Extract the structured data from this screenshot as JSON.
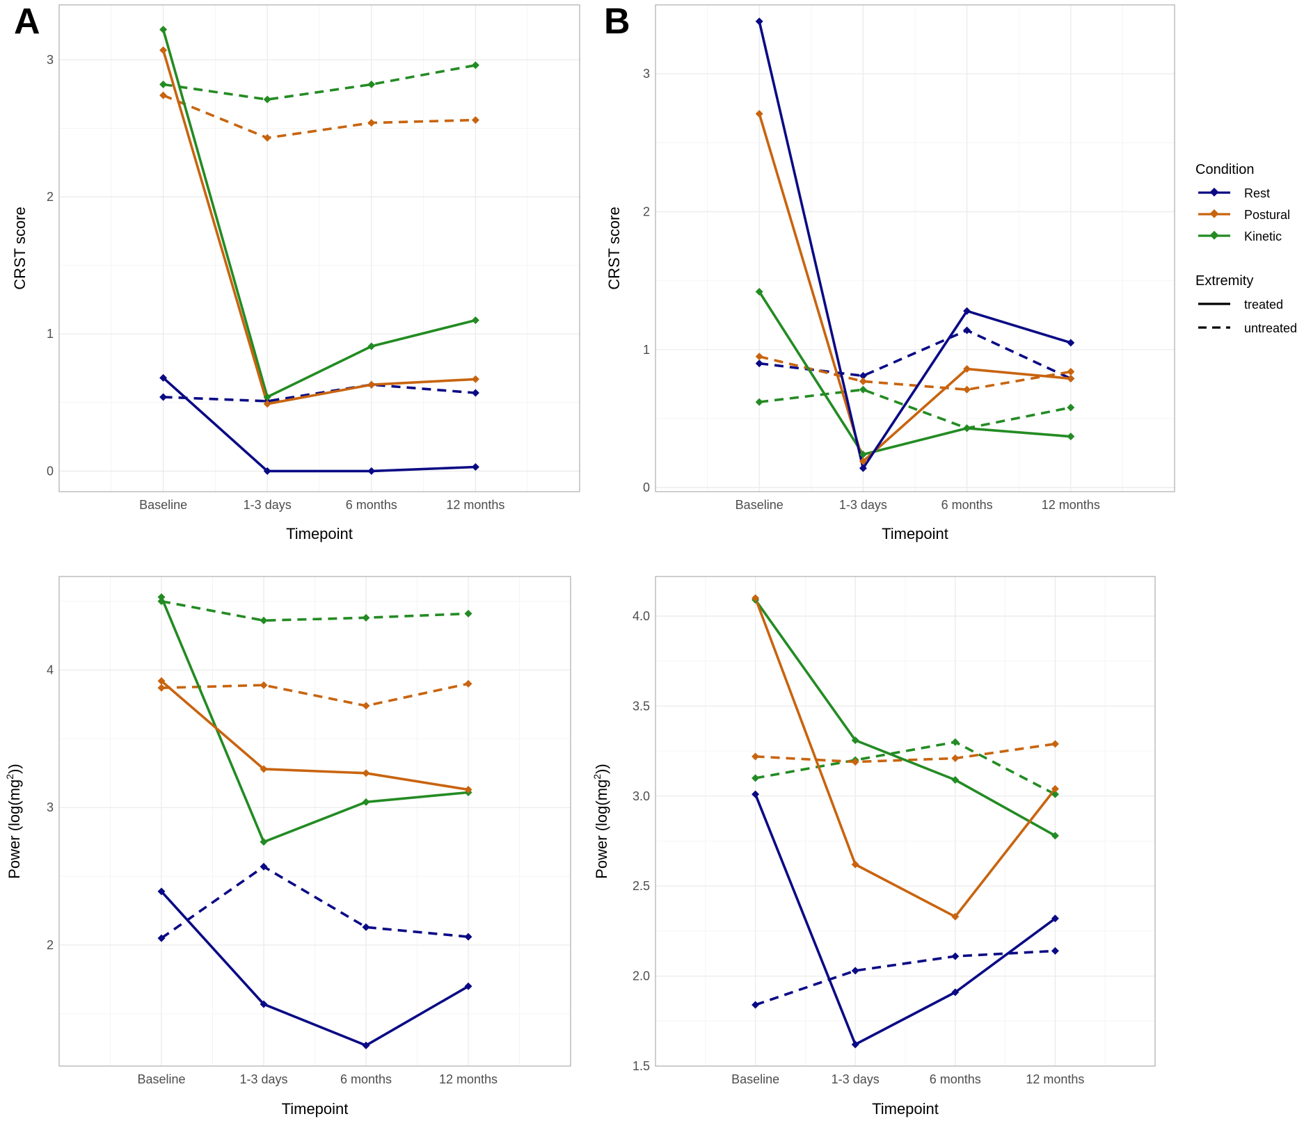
{
  "colors": {
    "Rest": "#0a0a85",
    "Postural": "#c8640f",
    "Kinetic": "#238b23"
  },
  "panel_letters": [
    "A",
    "B"
  ],
  "legend": {
    "condition_title": "Condition",
    "conditions": [
      "Rest",
      "Postural",
      "Kinetic"
    ],
    "extremity_title": "Extremity",
    "extremities": [
      "treated",
      "untreated"
    ]
  },
  "chart_data": [
    {
      "id": "A-top",
      "type": "line",
      "xlabel": "Timepoint",
      "ylabel": "CRST score",
      "categories": [
        "Baseline",
        "1-3 days",
        "6 months",
        "12 months"
      ],
      "ylim": [
        -0.15,
        3.4
      ],
      "yticks": [
        0,
        1,
        2,
        3
      ],
      "series": [
        {
          "condition": "Kinetic",
          "extremity": "untreated",
          "values": [
            2.82,
            2.71,
            2.82,
            2.96
          ]
        },
        {
          "condition": "Postural",
          "extremity": "untreated",
          "values": [
            2.74,
            2.43,
            2.54,
            2.56
          ]
        },
        {
          "condition": "Rest",
          "extremity": "untreated",
          "values": [
            0.54,
            0.51,
            0.63,
            0.57
          ]
        },
        {
          "condition": "Kinetic",
          "extremity": "treated",
          "values": [
            3.22,
            0.54,
            0.91,
            1.1
          ]
        },
        {
          "condition": "Postural",
          "extremity": "treated",
          "values": [
            3.07,
            0.49,
            0.63,
            0.67
          ]
        },
        {
          "condition": "Rest",
          "extremity": "treated",
          "values": [
            0.68,
            0.0,
            0.0,
            0.03
          ]
        }
      ]
    },
    {
      "id": "B-top",
      "type": "line",
      "xlabel": "Timepoint",
      "ylabel": "CRST score",
      "categories": [
        "Baseline",
        "1-3 days",
        "6 months",
        "12 months"
      ],
      "ylim": [
        -0.03,
        3.5
      ],
      "yticks": [
        0,
        1,
        2,
        3
      ],
      "series": [
        {
          "condition": "Rest",
          "extremity": "untreated",
          "values": [
            0.9,
            0.81,
            1.14,
            0.79
          ]
        },
        {
          "condition": "Postural",
          "extremity": "untreated",
          "values": [
            0.95,
            0.77,
            0.71,
            0.84
          ]
        },
        {
          "condition": "Kinetic",
          "extremity": "untreated",
          "values": [
            0.62,
            0.71,
            0.43,
            0.58
          ]
        },
        {
          "condition": "Kinetic",
          "extremity": "treated",
          "values": [
            1.42,
            0.24,
            0.43,
            0.37
          ]
        },
        {
          "condition": "Postural",
          "extremity": "treated",
          "values": [
            2.71,
            0.19,
            0.86,
            0.79
          ]
        },
        {
          "condition": "Rest",
          "extremity": "treated",
          "values": [
            3.38,
            0.14,
            1.28,
            1.05
          ]
        }
      ]
    },
    {
      "id": "A-bottom",
      "type": "line",
      "xlabel": "Timepoint",
      "ylabel": "Power (log(mg",
      "ylabel_sup": "2",
      "ylabel_end": "))",
      "categories": [
        "Baseline",
        "1-3 days",
        "6 months",
        "12 months"
      ],
      "ylim": [
        1.12,
        4.68
      ],
      "yticks": [
        2,
        3,
        4
      ],
      "series": [
        {
          "condition": "Kinetic",
          "extremity": "untreated",
          "values": [
            4.5,
            4.36,
            4.38,
            4.41
          ]
        },
        {
          "condition": "Postural",
          "extremity": "untreated",
          "values": [
            3.87,
            3.89,
            3.74,
            3.9
          ]
        },
        {
          "condition": "Rest",
          "extremity": "untreated",
          "values": [
            2.05,
            2.57,
            2.13,
            2.06
          ]
        },
        {
          "condition": "Kinetic",
          "extremity": "treated",
          "values": [
            4.53,
            2.75,
            3.04,
            3.11
          ]
        },
        {
          "condition": "Postural",
          "extremity": "treated",
          "values": [
            3.92,
            3.28,
            3.25,
            3.13
          ]
        },
        {
          "condition": "Rest",
          "extremity": "treated",
          "values": [
            2.39,
            1.57,
            1.27,
            1.7
          ]
        }
      ]
    },
    {
      "id": "B-bottom",
      "type": "line",
      "xlabel": "Timepoint",
      "ylabel": "Power (log(mg",
      "ylabel_sup": "2",
      "ylabel_end": "))",
      "categories": [
        "Baseline",
        "1-3 days",
        "6 months",
        "12 months"
      ],
      "ylim": [
        1.5,
        4.22
      ],
      "yticks": [
        1.5,
        2.0,
        2.5,
        3.0,
        3.5,
        4.0
      ],
      "ytick_labels": [
        "1.5",
        "2.0",
        "2.5",
        "3.0",
        "3.5",
        "4.0"
      ],
      "series": [
        {
          "condition": "Kinetic",
          "extremity": "untreated",
          "values": [
            3.1,
            3.2,
            3.3,
            3.01
          ]
        },
        {
          "condition": "Postural",
          "extremity": "untreated",
          "values": [
            3.22,
            3.19,
            3.21,
            3.29
          ]
        },
        {
          "condition": "Rest",
          "extremity": "untreated",
          "values": [
            1.84,
            2.03,
            2.11,
            2.14
          ]
        },
        {
          "condition": "Kinetic",
          "extremity": "treated",
          "values": [
            4.09,
            3.31,
            3.09,
            2.78
          ]
        },
        {
          "condition": "Postural",
          "extremity": "treated",
          "values": [
            4.1,
            2.62,
            2.33,
            3.04
          ]
        },
        {
          "condition": "Rest",
          "extremity": "treated",
          "values": [
            3.01,
            1.62,
            1.91,
            2.32
          ]
        }
      ]
    }
  ]
}
